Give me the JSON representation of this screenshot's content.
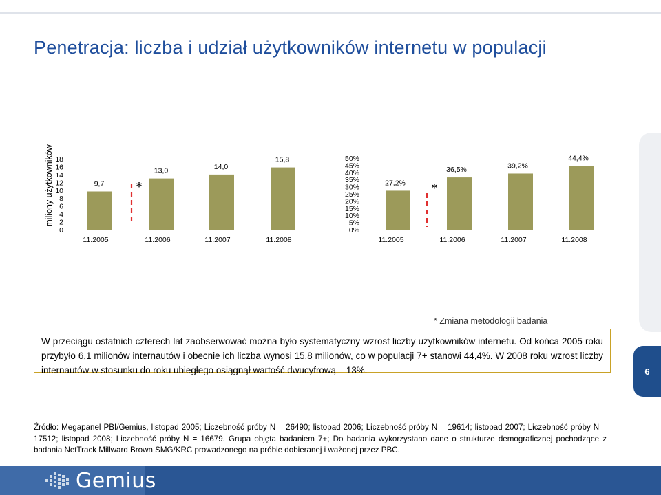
{
  "slide": {
    "title": "Penetracja: liczba i udział użytkowników internetu w populacji",
    "footnote": "* Zmiana metodologii badania",
    "summary": "W przeciągu ostatnich czterech lat zaobserwować można było systematyczny wzrost liczby użytkowników internetu. Od końca 2005 roku przybyło 6,1 milionów internautów i obecnie ich liczba wynosi 15,8 milionów, co w populacji 7+ stanowi 44,4%. W 2008 roku wzrost liczby internautów w stosunku do roku ubiegłego osiągnął wartość dwucyfrową – 13%.",
    "page_number": "6",
    "source": "Źródło: Megapanel PBI/Gemius, listopad 2005; Liczebność próby N = 26490; listopad 2006; Liczebność próby N = 19614; listopad 2007; Liczebność próby N = 17512; listopad 2008; Liczebność próby N = 16679. Grupa objęta badaniem 7+; Do badania wykorzystano dane o strukturze demograficznej pochodzące z badania NetTrack Millward Brown SMG/KRC prowadzonego na próbie dobieranej i ważonej przez PBC.",
    "logo_text": "Gemius",
    "colors": {
      "title": "#1f4e9c",
      "bar": "#9c9a5a",
      "marker": "#e03030",
      "box_border": "#c9a227",
      "bottom_bar": "#2a5694"
    }
  },
  "chart_data": [
    {
      "type": "bar",
      "categories": [
        "11.2005",
        "11.2006",
        "11.2007",
        "11.2008"
      ],
      "values": [
        9.7,
        13.0,
        14.0,
        15.8
      ],
      "value_labels": [
        "9,7",
        "13,0",
        "14,0",
        "15,8"
      ],
      "ylabel": "miliony użytkowników",
      "ylim": [
        0,
        18
      ],
      "yticks": [
        "0",
        "2",
        "4",
        "6",
        "8",
        "10",
        "12",
        "14",
        "16",
        "18"
      ],
      "grid": false,
      "marker": {
        "between": [
          "11.2005",
          "11.2006"
        ],
        "label": "*"
      }
    },
    {
      "type": "bar",
      "categories": [
        "11.2005",
        "11.2006",
        "11.2007",
        "11.2008"
      ],
      "values": [
        27.2,
        36.5,
        39.2,
        44.4
      ],
      "value_labels": [
        "27,2%",
        "36,5%",
        "39,2%",
        "44,4%"
      ],
      "ylim": [
        0,
        50
      ],
      "yticks": [
        "0%",
        "5%",
        "10%",
        "15%",
        "20%",
        "25%",
        "30%",
        "35%",
        "40%",
        "45%",
        "50%"
      ],
      "grid": false,
      "marker": {
        "between": [
          "11.2005",
          "11.2006"
        ],
        "label": "*"
      }
    }
  ]
}
